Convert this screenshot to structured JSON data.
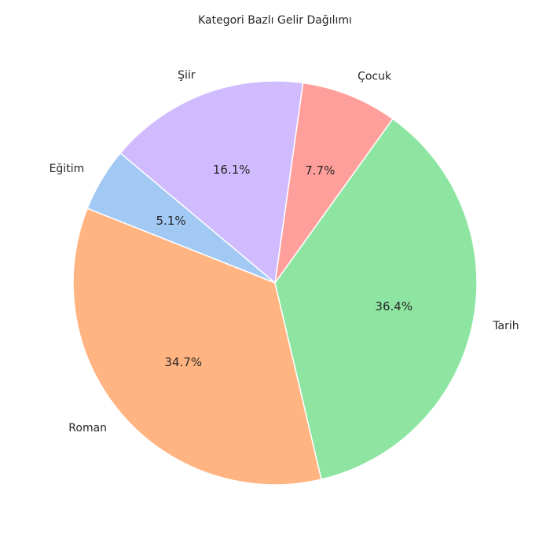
{
  "chart_data": {
    "type": "pie",
    "title": "Kategori Bazlı Gelir Dağılımı",
    "start_angle_deg": 140,
    "direction": "counterclockwise",
    "slices": [
      {
        "label": "Eğitim",
        "value": 5.1,
        "pct_label": "5.1%",
        "color": "#a1c9f4"
      },
      {
        "label": "Roman",
        "value": 34.7,
        "pct_label": "34.7%",
        "color": "#ffb482"
      },
      {
        "label": "Tarih",
        "value": 36.4,
        "pct_label": "36.4%",
        "color": "#8de5a1"
      },
      {
        "label": "Çocuk",
        "value": 7.7,
        "pct_label": "7.7%",
        "color": "#ff9f9b"
      },
      {
        "label": "Şiir",
        "value": 16.1,
        "pct_label": "16.1%",
        "color": "#d0bbff"
      }
    ]
  }
}
